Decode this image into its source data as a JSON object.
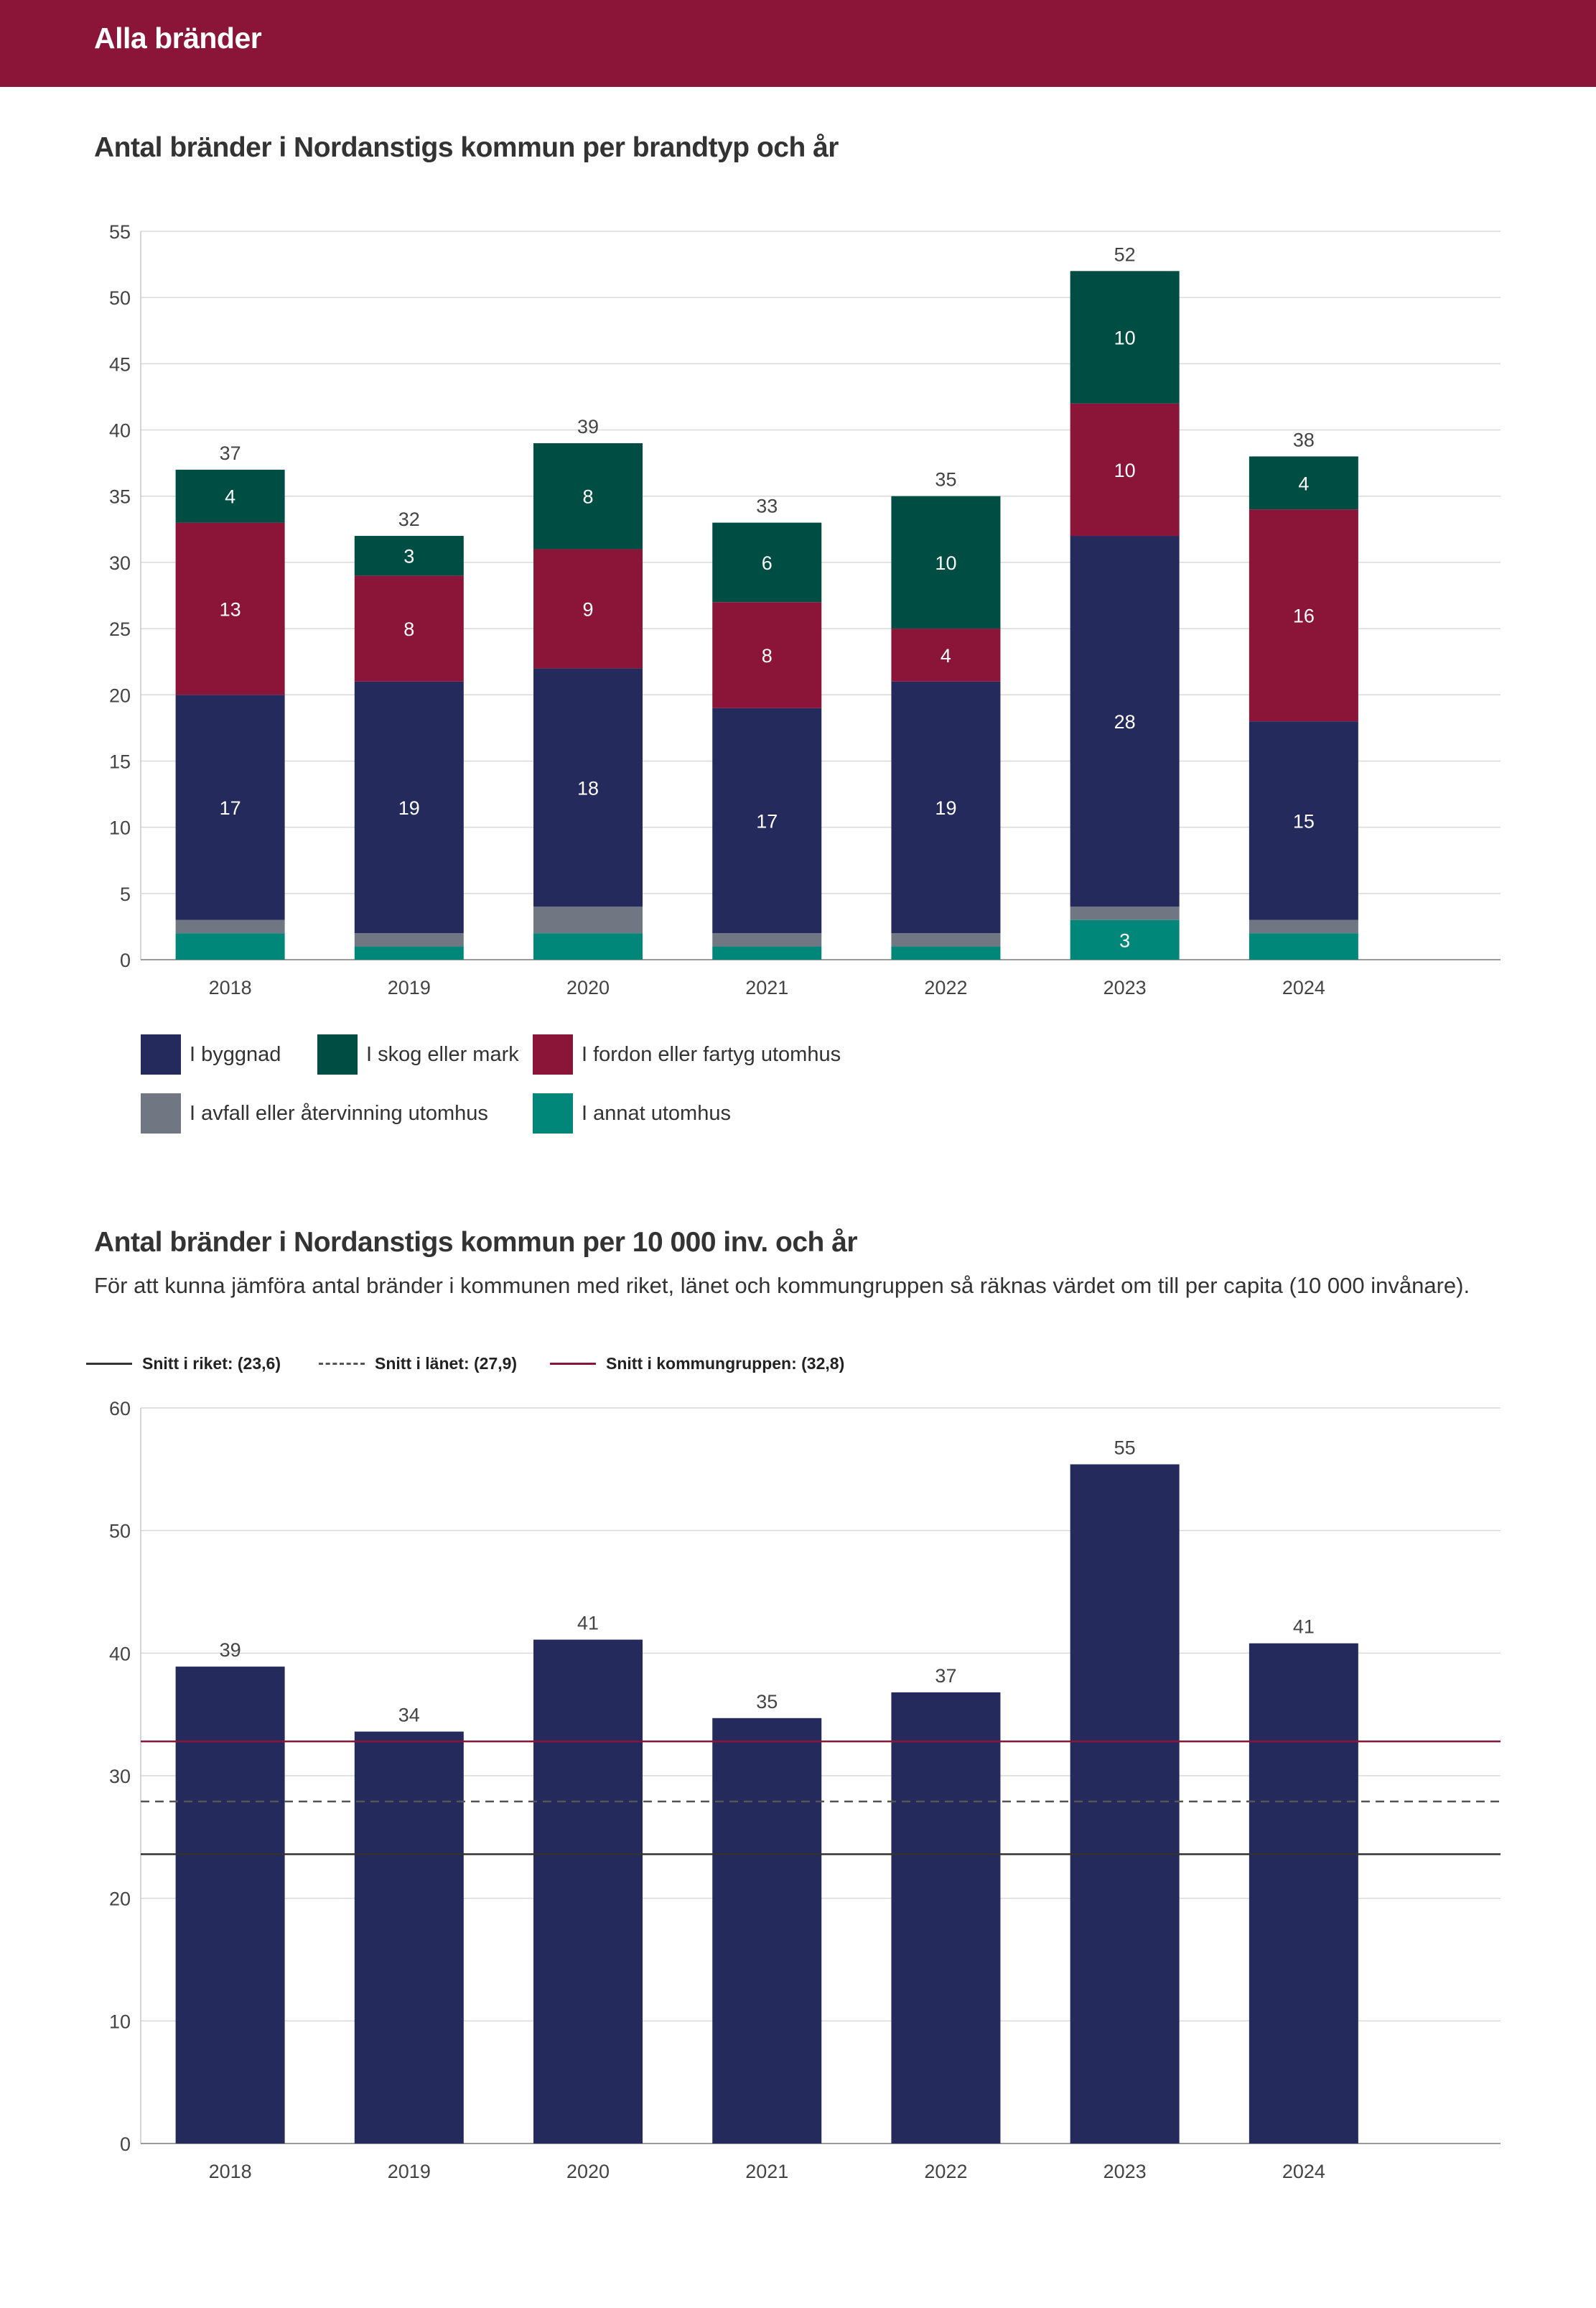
{
  "header": {
    "title": "Alla bränder"
  },
  "chart1": {
    "heading": "Antal bränder i Nordanstigs kommun per brandtyp och år"
  },
  "chart2": {
    "heading": "Antal bränder i Nordanstigs kommun per 10 000 inv. och år",
    "subtitle": "För att kunna jämföra antal bränder i kommunen med riket, länet och kommungruppen så räknas värdet om till per capita (10 000 invånare)."
  },
  "colors": {
    "header": "#8b1538",
    "byggnad": "#252a5c",
    "skog": "#004d44",
    "fordon": "#8b1538",
    "avfall": "#707682",
    "annat": "#00877a",
    "riket": "#333333",
    "lanet": "#555555",
    "kommungrupp": "#8b1538"
  },
  "chart_data": [
    {
      "type": "bar",
      "stacked": true,
      "title": "Antal bränder i Nordanstigs kommun per brandtyp och år",
      "categories": [
        "2018",
        "2019",
        "2020",
        "2021",
        "2022",
        "2023",
        "2024"
      ],
      "ylim": [
        0,
        55
      ],
      "yticks": [
        0,
        5,
        10,
        15,
        20,
        25,
        30,
        35,
        40,
        45,
        50,
        55
      ],
      "grid": true,
      "series": [
        {
          "key": "annat",
          "name": "I annat utomhus",
          "values": [
            2,
            1,
            2,
            1,
            1,
            3,
            2
          ],
          "labels": [
            "",
            "",
            "",
            "",
            "",
            "3",
            ""
          ]
        },
        {
          "key": "avfall",
          "name": "I avfall eller återvinning utomhus",
          "values": [
            1,
            1,
            2,
            1,
            1,
            1,
            1
          ],
          "labels": [
            "",
            "",
            "",
            "",
            "",
            "",
            ""
          ]
        },
        {
          "key": "byggnad",
          "name": "I byggnad",
          "values": [
            17,
            19,
            18,
            17,
            19,
            28,
            15
          ],
          "labels": [
            "17",
            "19",
            "18",
            "17",
            "19",
            "28",
            "15"
          ]
        },
        {
          "key": "fordon",
          "name": "I fordon eller fartyg utomhus",
          "values": [
            13,
            8,
            9,
            8,
            4,
            10,
            16
          ],
          "labels": [
            "13",
            "8",
            "9",
            "8",
            "4",
            "10",
            "16"
          ]
        },
        {
          "key": "skog",
          "name": "I skog eller mark",
          "values": [
            4,
            3,
            8,
            6,
            10,
            10,
            4
          ],
          "labels": [
            "4",
            "3",
            "8",
            "6",
            "10",
            "10",
            "4"
          ]
        }
      ],
      "totals": [
        "37",
        "32",
        "39",
        "33",
        "35",
        "52",
        "38"
      ],
      "legend": [
        {
          "key": "byggnad",
          "label": "I byggnad"
        },
        {
          "key": "skog",
          "label": "I skog eller mark"
        },
        {
          "key": "fordon",
          "label": "I fordon eller fartyg utomhus"
        },
        {
          "key": "avfall",
          "label": "I avfall eller återvinning utomhus"
        },
        {
          "key": "annat",
          "label": "I annat utomhus"
        }
      ]
    },
    {
      "type": "bar",
      "title": "Antal bränder i Nordanstigs kommun per 10 000 inv. och år",
      "categories": [
        "2018",
        "2019",
        "2020",
        "2021",
        "2022",
        "2023",
        "2024"
      ],
      "values": [
        38.9,
        33.6,
        41.1,
        34.7,
        36.8,
        55.4,
        40.8
      ],
      "labels": [
        "39",
        "34",
        "41",
        "35",
        "37",
        "55",
        "41"
      ],
      "ylim": [
        0,
        60
      ],
      "yticks": [
        0,
        10,
        20,
        30,
        40,
        50,
        60
      ],
      "grid": true,
      "reference_lines": [
        {
          "key": "riket",
          "label": "Snitt i riket: (23,6)",
          "value": 23.6,
          "style": "solid"
        },
        {
          "key": "lanet",
          "label": "Snitt i länet: (27,9)",
          "value": 27.9,
          "style": "dashed"
        },
        {
          "key": "kommungrupp",
          "label": "Snitt i kommungruppen: (32,8)",
          "value": 32.8,
          "style": "solid"
        }
      ]
    }
  ]
}
